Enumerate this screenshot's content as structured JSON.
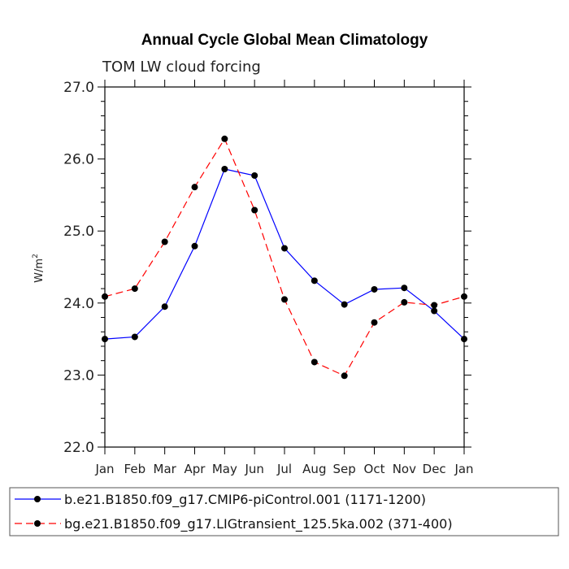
{
  "chart_data": {
    "type": "line",
    "title": "Annual Cycle Global Mean Climatology",
    "subtitle": "TOM LW cloud forcing",
    "ylabel": "W/m",
    "ylabel_superscript": "2",
    "categories": [
      "Jan",
      "Feb",
      "Mar",
      "Apr",
      "May",
      "Jun",
      "Jul",
      "Aug",
      "Sep",
      "Oct",
      "Nov",
      "Dec",
      "Jan"
    ],
    "ylim": [
      22.0,
      27.0
    ],
    "yticks": [
      "22.0",
      "23.0",
      "24.0",
      "25.0",
      "26.0",
      "27.0"
    ],
    "grid": false,
    "legend_position": "bottom",
    "series": [
      {
        "name": "b.e21.B1850.f09_g17.CMIP6-piControl.001 (1171-1200)",
        "color": "#0000ff",
        "dash": "solid",
        "values": [
          23.5,
          23.53,
          23.95,
          24.79,
          25.86,
          25.77,
          24.76,
          24.31,
          23.98,
          24.19,
          24.21,
          23.89,
          23.5
        ]
      },
      {
        "name": "bg.e21.B1850.f09_g17.LIGtransient_125.5ka.002 (371-400)",
        "color": "#ff0000",
        "dash": "dashed",
        "values": [
          24.09,
          24.2,
          24.85,
          25.61,
          26.28,
          25.29,
          24.05,
          23.18,
          22.99,
          23.73,
          24.01,
          23.97,
          24.09
        ]
      }
    ]
  }
}
